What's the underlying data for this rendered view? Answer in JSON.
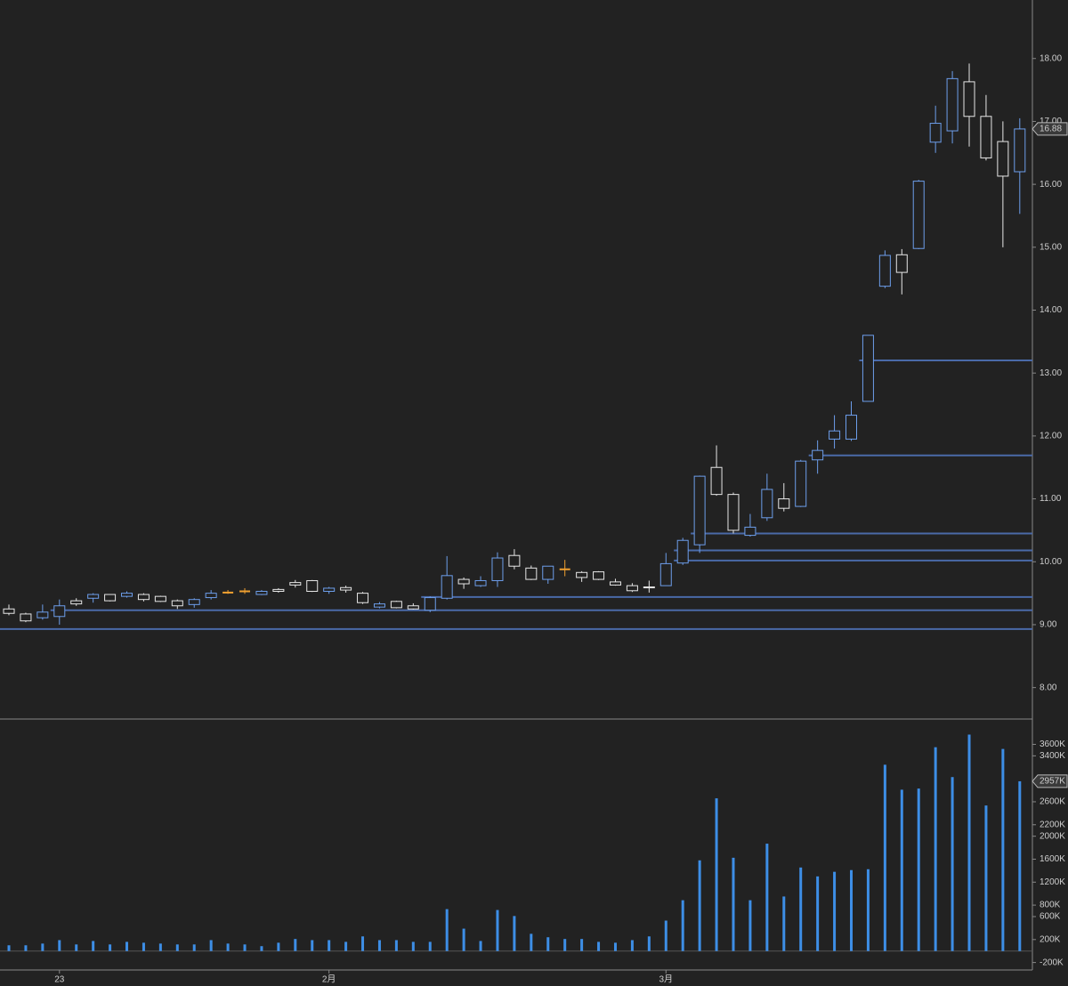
{
  "chart_data": {
    "type": "candlestick",
    "categories": [
      null,
      null,
      null,
      "23",
      null,
      null,
      null,
      null,
      null,
      null,
      null,
      null,
      null,
      null,
      null,
      null,
      null,
      null,
      null,
      "2月",
      null,
      null,
      null,
      null,
      null,
      null,
      null,
      null,
      null,
      null,
      null,
      null,
      null,
      null,
      null,
      null,
      null,
      null,
      null,
      "3月",
      null,
      null,
      null,
      null,
      null,
      null,
      null,
      null,
      null,
      null,
      null,
      null,
      null,
      null,
      null,
      null,
      null,
      null,
      null,
      null,
      null
    ],
    "open": [
      9.25,
      9.17,
      9.11,
      9.13,
      9.38,
      9.42,
      9.48,
      9.45,
      9.48,
      9.45,
      9.38,
      9.32,
      9.43,
      9.51,
      9.53,
      9.48,
      9.56,
      9.67,
      9.7,
      9.53,
      9.59,
      9.5,
      9.28,
      9.37,
      9.3,
      9.23,
      9.42,
      9.72,
      9.62,
      9.7,
      10.1,
      9.9,
      9.72,
      9.88,
      9.83,
      9.84,
      9.68,
      9.62,
      9.6,
      9.62,
      9.98,
      10.27,
      11.5,
      11.07,
      10.42,
      10.7,
      11.0,
      10.88,
      11.62,
      11.95,
      11.95,
      12.55,
      14.38,
      14.88,
      14.98,
      16.67,
      16.85,
      17.63,
      17.08,
      16.68,
      16.2
    ],
    "high": [
      9.32,
      9.19,
      9.32,
      9.4,
      9.42,
      9.5,
      9.48,
      9.53,
      9.5,
      9.46,
      9.4,
      9.42,
      9.55,
      9.55,
      9.58,
      9.55,
      9.58,
      9.71,
      9.71,
      9.6,
      9.62,
      9.52,
      9.36,
      9.38,
      9.34,
      9.45,
      10.09,
      9.75,
      9.77,
      10.15,
      10.2,
      9.94,
      9.93,
      10.03,
      9.85,
      9.85,
      9.73,
      9.66,
      9.7,
      10.14,
      10.38,
      11.37,
      11.85,
      11.1,
      10.76,
      11.4,
      11.25,
      11.62,
      11.93,
      12.33,
      12.55,
      13.6,
      14.95,
      14.97,
      16.07,
      17.25,
      17.8,
      17.92,
      17.42,
      17.0,
      17.05
    ],
    "low": [
      9.15,
      9.04,
      9.08,
      9.0,
      9.3,
      9.35,
      9.37,
      9.43,
      9.37,
      9.36,
      9.25,
      9.27,
      9.4,
      9.49,
      9.49,
      9.47,
      9.51,
      9.59,
      9.52,
      9.49,
      9.51,
      9.33,
      9.26,
      9.26,
      9.24,
      9.2,
      9.4,
      9.57,
      9.6,
      9.6,
      9.88,
      9.71,
      9.65,
      9.77,
      9.68,
      9.71,
      9.62,
      9.52,
      9.51,
      9.62,
      9.95,
      10.14,
      11.05,
      10.45,
      10.4,
      10.65,
      10.8,
      10.87,
      11.4,
      11.8,
      11.92,
      12.55,
      14.35,
      14.25,
      14.97,
      16.5,
      16.65,
      16.6,
      16.38,
      15.0,
      15.53
    ],
    "close": [
      9.18,
      9.06,
      9.2,
      9.3,
      9.33,
      9.48,
      9.38,
      9.5,
      9.4,
      9.37,
      9.3,
      9.4,
      9.5,
      9.51,
      9.53,
      9.53,
      9.53,
      9.63,
      9.53,
      9.58,
      9.55,
      9.35,
      9.33,
      9.27,
      9.25,
      9.43,
      9.78,
      9.65,
      9.7,
      10.06,
      9.93,
      9.72,
      9.93,
      9.88,
      9.75,
      9.72,
      9.63,
      9.54,
      9.59,
      9.97,
      10.34,
      11.36,
      11.07,
      10.5,
      10.55,
      11.15,
      10.85,
      11.6,
      11.77,
      12.08,
      12.33,
      13.6,
      14.87,
      14.6,
      16.05,
      16.97,
      17.68,
      17.08,
      16.42,
      16.13,
      16.88
    ],
    "up_color": "#6d9eeb",
    "down_color": "#e6e6e6",
    "flat_color": "#f0a030",
    "last_label": "16.88",
    "ylim": [
      7.5,
      18.93
    ],
    "yticks": [
      {
        "value": 8,
        "label": "8.00"
      },
      {
        "value": 9,
        "label": "9.00"
      },
      {
        "value": 10,
        "label": "10.00"
      },
      {
        "value": 11,
        "label": "11.00"
      },
      {
        "value": 12,
        "label": "12.00"
      },
      {
        "value": 13,
        "label": "13.00"
      },
      {
        "value": 14,
        "label": "14.00"
      },
      {
        "value": 15,
        "label": "15.00"
      },
      {
        "value": 16,
        "label": "16.00"
      },
      {
        "value": 17,
        "label": "17.00"
      },
      {
        "value": 18,
        "label": "18.00"
      }
    ],
    "levels": [
      {
        "value": 8.93,
        "start": 0
      },
      {
        "value": 9.23,
        "start": 3
      },
      {
        "value": 9.44,
        "start": 25
      },
      {
        "value": 10.02,
        "start": 40
      },
      {
        "value": 10.18,
        "start": 40
      },
      {
        "value": 10.45,
        "start": 41
      },
      {
        "value": 11.69,
        "start": 48
      },
      {
        "value": 13.2,
        "start": 51
      }
    ],
    "level_color": "#4a6aa8",
    "volume": {
      "type": "bar",
      "color": "#3d8ee6",
      "values": [
        100000,
        100000,
        130000,
        190000,
        115000,
        175000,
        115000,
        160000,
        145000,
        130000,
        115000,
        115000,
        190000,
        130000,
        115000,
        85000,
        145000,
        210000,
        190000,
        190000,
        160000,
        255000,
        190000,
        190000,
        160000,
        160000,
        730000,
        390000,
        175000,
        715000,
        610000,
        300000,
        240000,
        210000,
        210000,
        160000,
        145000,
        190000,
        255000,
        530000,
        885000,
        1580000,
        2660000,
        1625000,
        885000,
        1870000,
        950000,
        1455000,
        1300000,
        1380000,
        1410000,
        1425000,
        3245000,
        2810000,
        2830000,
        3550000,
        3030000,
        3770000,
        2535000,
        3520000,
        2957000
      ],
      "last_label": "2957K",
      "ylim": [
        -330000,
        4010000
      ],
      "yticks": [
        {
          "value": -200000,
          "label": "-200K"
        },
        {
          "value": 200000,
          "label": "200K"
        },
        {
          "value": 600000,
          "label": "600K"
        },
        {
          "value": 800000,
          "label": "800K"
        },
        {
          "value": 1200000,
          "label": "1200K"
        },
        {
          "value": 1600000,
          "label": "1600K"
        },
        {
          "value": 2000000,
          "label": "2000K"
        },
        {
          "value": 2200000,
          "label": "2200K"
        },
        {
          "value": 2600000,
          "label": "2600K"
        },
        {
          "value": 3400000,
          "label": "3400K"
        },
        {
          "value": 3600000,
          "label": "3600K"
        }
      ]
    }
  }
}
